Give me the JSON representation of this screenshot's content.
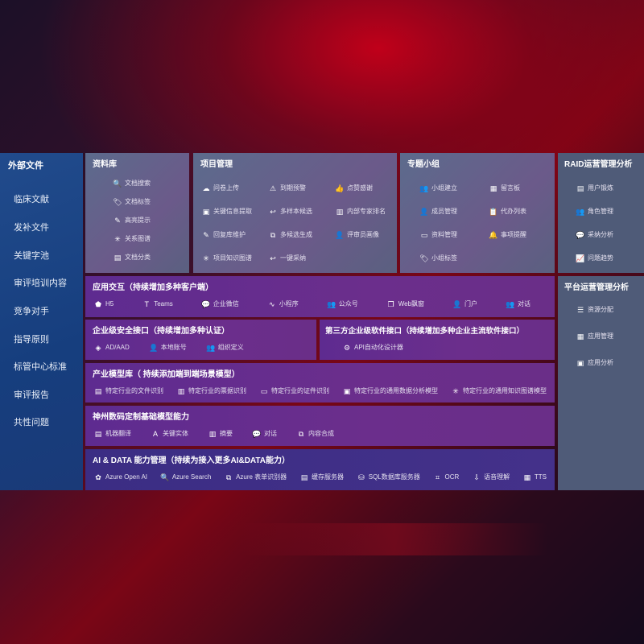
{
  "sidebar": {
    "title": "外部文件",
    "items": [
      "临床文献",
      "发补文件",
      "关键字池",
      "审评培训内容",
      "竞争对手",
      "指导原则",
      "标管中心标准",
      "审评报告",
      "共性问题"
    ]
  },
  "library": {
    "title": "资料库",
    "items": [
      {
        "icon": "file-search-icon",
        "glyph": "🔍",
        "label": "文档搜索"
      },
      {
        "icon": "tag-icon",
        "glyph": "🏷",
        "label": "文档标签"
      },
      {
        "icon": "pen-icon",
        "glyph": "✎",
        "label": "高亮提示"
      },
      {
        "icon": "graph-icon",
        "glyph": "✳",
        "label": "关系图谱"
      },
      {
        "icon": "document-icon",
        "glyph": "▤",
        "label": "文档分类"
      }
    ]
  },
  "project": {
    "title": "项目管理",
    "items": [
      {
        "icon": "cloud-upload-icon",
        "glyph": "☁",
        "label": "问卷上传"
      },
      {
        "icon": "alarm-icon",
        "glyph": "⚠",
        "label": "到期预警"
      },
      {
        "icon": "thumbs-up-icon",
        "glyph": "👍",
        "label": "点赞感谢"
      },
      {
        "icon": "window-icon",
        "glyph": "▣",
        "label": "关键信息提取"
      },
      {
        "icon": "reply-icon",
        "glyph": "↩",
        "label": "多样本候选"
      },
      {
        "icon": "ranking-icon",
        "glyph": "▥",
        "label": "内部专家排名"
      },
      {
        "icon": "edit-icon",
        "glyph": "✎",
        "label": "回复库维护"
      },
      {
        "icon": "puzzle-icon",
        "glyph": "⧉",
        "label": "多候选生成"
      },
      {
        "icon": "user-icon",
        "glyph": "👤",
        "label": "评审员画像"
      },
      {
        "icon": "graph-icon",
        "glyph": "✳",
        "label": "项目知识图谱"
      },
      {
        "icon": "reply-icon",
        "glyph": "↩",
        "label": "一键采纳"
      }
    ]
  },
  "group": {
    "title": "专题小组",
    "items": [
      {
        "icon": "users-icon",
        "glyph": "👥",
        "label": "小组建立"
      },
      {
        "icon": "bbs-icon",
        "glyph": "▦",
        "label": "留言板"
      },
      {
        "icon": "user-add-icon",
        "glyph": "👤",
        "label": "成员管理"
      },
      {
        "icon": "clipboard-icon",
        "glyph": "📋",
        "label": "代办列表"
      },
      {
        "icon": "folder-icon",
        "glyph": "▭",
        "label": "资料管理"
      },
      {
        "icon": "bell-icon",
        "glyph": "🔔",
        "label": "事项提醒"
      },
      {
        "icon": "tag-icon",
        "glyph": "🏷",
        "label": "小组标签"
      }
    ]
  },
  "raid": {
    "title": "RAID运营管理分析",
    "items": [
      {
        "icon": "id-card-icon",
        "glyph": "▤",
        "label": "用户锻炼"
      },
      {
        "icon": "users-icon",
        "glyph": "👥",
        "label": "角色管理"
      },
      {
        "icon": "qa-icon",
        "glyph": "💬",
        "label": "采纳分析"
      },
      {
        "icon": "trend-icon",
        "glyph": "📈",
        "label": "问题趋势"
      }
    ]
  },
  "platform": {
    "title": "平台运营管理分析",
    "items": [
      {
        "icon": "checklist-icon",
        "glyph": "☰",
        "label": "资源分配"
      },
      {
        "icon": "apps-icon",
        "glyph": "▦",
        "label": "应用管理"
      },
      {
        "icon": "analytics-icon",
        "glyph": "▣",
        "label": "应用分析"
      }
    ]
  },
  "interaction": {
    "title": "应用交互（持续增加多种客户端）",
    "items": [
      {
        "icon": "html5-icon",
        "glyph": "⬟",
        "label": "H5"
      },
      {
        "icon": "teams-icon",
        "glyph": "T",
        "label": "Teams"
      },
      {
        "icon": "wechat-icon",
        "glyph": "💬",
        "label": "企业微信"
      },
      {
        "icon": "miniprogram-icon",
        "glyph": "∿",
        "label": "小程序"
      },
      {
        "icon": "users-icon",
        "glyph": "👥",
        "label": "公众号"
      },
      {
        "icon": "window-icon",
        "glyph": "❐",
        "label": "Web飘窗"
      },
      {
        "icon": "portal-user-icon",
        "glyph": "👤",
        "label": "门户"
      },
      {
        "icon": "chat-users-icon",
        "glyph": "👥",
        "label": "对话"
      }
    ]
  },
  "security": {
    "title": "企业级安全接口（持续增加多种认证）",
    "items": [
      {
        "icon": "ad-icon",
        "glyph": "◈",
        "label": "AD/AAD"
      },
      {
        "icon": "local-account-icon",
        "glyph": "👤",
        "label": "本地账号"
      },
      {
        "icon": "org-icon",
        "glyph": "👥",
        "label": "组织定义"
      }
    ]
  },
  "third": {
    "title": "第三方企业级软件接口（持续增加多种企业主流软件接口）",
    "items": [
      {
        "icon": "gear-icon",
        "glyph": "⚙",
        "label": "API自动化设计器"
      }
    ]
  },
  "industry": {
    "title": "产业模型库（ 持续添加端到端场景模型）",
    "items": [
      {
        "icon": "file-icon",
        "glyph": "▤",
        "label": "特定行业的文件识别"
      },
      {
        "icon": "receipt-icon",
        "glyph": "▥",
        "label": "特定行业的票据识别"
      },
      {
        "icon": "id-card-icon",
        "glyph": "▭",
        "label": "特定行业的证件识别"
      },
      {
        "icon": "chart-icon",
        "glyph": "▣",
        "label": "特定行业的通用数据分析模型"
      },
      {
        "icon": "graph-icon",
        "glyph": "✳",
        "label": "特定行业的通用知识图谱模型"
      }
    ]
  },
  "custom": {
    "title": "神州数码定制基础模型能力",
    "items": [
      {
        "icon": "translate-icon",
        "glyph": "▤",
        "label": "机器翻译"
      },
      {
        "icon": "entity-icon",
        "glyph": "A",
        "label": "关键实体"
      },
      {
        "icon": "summary-icon",
        "glyph": "▥",
        "label": "摘要"
      },
      {
        "icon": "chat-icon",
        "glyph": "💬",
        "label": "对话"
      },
      {
        "icon": "puzzle-icon",
        "glyph": "⧉",
        "label": "内容合成"
      }
    ]
  },
  "aidata": {
    "title": "AI & DATA 能力管理（持续为接入更多AI&DATA能力）",
    "items": [
      {
        "icon": "openai-icon",
        "glyph": "✿",
        "label": "Azure Open AI"
      },
      {
        "icon": "search-doc-icon",
        "glyph": "🔍",
        "label": "Azure Search"
      },
      {
        "icon": "form-recognizer-icon",
        "glyph": "⧉",
        "label": "Azure 表单识别器"
      },
      {
        "icon": "cache-server-icon",
        "glyph": "▤",
        "label": "缓存服务器"
      },
      {
        "icon": "sql-database-icon",
        "glyph": "⛁",
        "label": "SQL数据库服务器"
      },
      {
        "icon": "ocr-icon",
        "glyph": "⌗",
        "label": "OCR"
      },
      {
        "icon": "speech-icon",
        "glyph": "⇩",
        "label": "语音理解"
      },
      {
        "icon": "tts-icon",
        "glyph": "▦",
        "label": "TTS"
      }
    ]
  }
}
